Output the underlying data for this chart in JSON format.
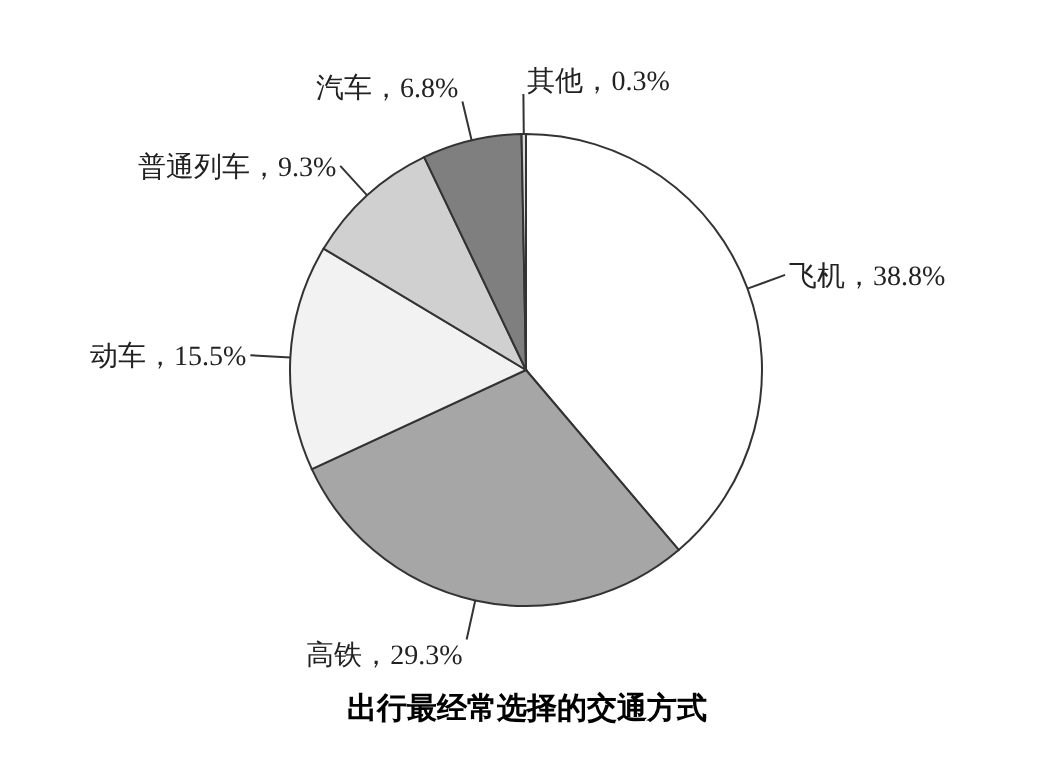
{
  "chart_data": {
    "type": "pie",
    "title": "出行最经常选择的交通方式",
    "categories": [
      "飞机",
      "高铁",
      "动车",
      "普通列车",
      "汽车",
      "其他"
    ],
    "values": [
      38.8,
      29.3,
      15.5,
      9.3,
      6.8,
      0.3
    ],
    "colors": [
      "#ffffff",
      "#a6a6a6",
      "#f2f2f2",
      "#d0d0d0",
      "#7f7f7f",
      "#d9d9d9"
    ],
    "value_labels": [
      "，38.8%",
      "，29.3%",
      "，15.5%",
      "，9.3%",
      "，6.8%",
      "，0.3%"
    ],
    "legend": false
  }
}
